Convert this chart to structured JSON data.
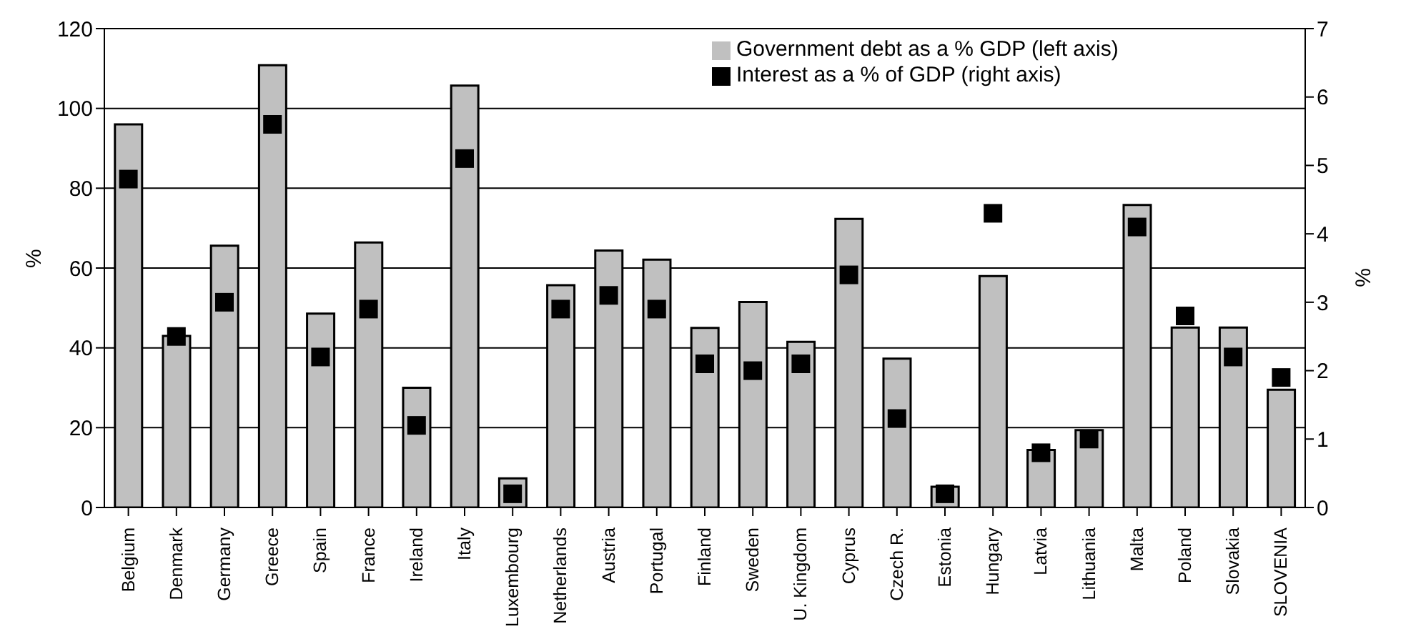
{
  "chart_data": {
    "type": "bar",
    "ylabel": "%",
    "y2label": "%",
    "categories": [
      "Belgium",
      "Denmark",
      "Germany",
      "Greece",
      "Spain",
      "France",
      "Ireland",
      "Italy",
      "Luxembourg",
      "Netherlands",
      "Austria",
      "Portugal",
      "Finland",
      "Sweden",
      "U. Kingdom",
      "Cyprus",
      "Czech R.",
      "Estonia",
      "Hungary",
      "Latvia",
      "Lithuania",
      "Malta",
      "Poland",
      "Slovakia",
      "SLOVENIA"
    ],
    "series": [
      {
        "name": "Government debt as a % GDP (left axis)",
        "color": "#c0c0c0",
        "values": [
          96,
          43,
          65.6,
          110.8,
          48.6,
          66.4,
          30,
          105.7,
          7.3,
          55.7,
          64.4,
          62.1,
          45,
          51.5,
          41.5,
          72.3,
          37.3,
          5.2,
          58,
          14.4,
          19.4,
          75.8,
          45.1,
          45.1,
          29.5
        ]
      },
      {
        "name": "Interest as a % of GDP (right axis)",
        "type": "scatter",
        "axis": "y2",
        "color": "#000000",
        "marker": "square",
        "values": [
          4.8,
          2.5,
          3.0,
          5.6,
          2.2,
          2.9,
          1.2,
          5.1,
          0.2,
          2.9,
          3.1,
          2.9,
          2.1,
          2.0,
          2.1,
          3.4,
          1.3,
          0.2,
          4.3,
          0.8,
          1.0,
          4.1,
          2.8,
          2.2,
          1.9
        ]
      }
    ],
    "ylim": [
      0,
      120
    ],
    "yticks": [
      0,
      20,
      40,
      60,
      80,
      100,
      120
    ],
    "y2lim": [
      0,
      7
    ],
    "y2ticks": [
      0,
      1,
      2,
      3,
      4,
      5,
      6,
      7
    ],
    "grid": "y",
    "legend": "top right"
  }
}
